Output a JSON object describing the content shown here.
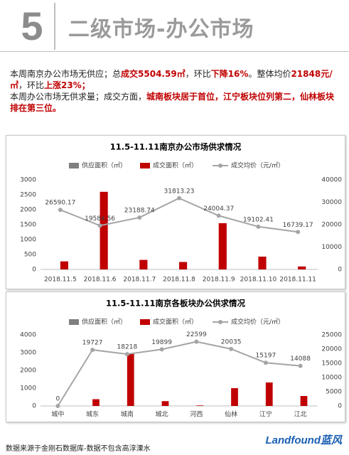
{
  "header": {
    "number": "5",
    "title": "二级市场-办公市场"
  },
  "summary": [
    [
      {
        "text": "本周南京办公市场无供应；总",
        "highlight": false
      },
      {
        "text": "成交5504.59㎡",
        "highlight": true
      },
      {
        "text": "，环比",
        "highlight": false
      },
      {
        "text": "下降16%",
        "highlight": true
      },
      {
        "text": "。整体均价",
        "highlight": false
      },
      {
        "text": "21848元/㎡",
        "highlight": true
      },
      {
        "text": "，环比",
        "highlight": false
      },
      {
        "text": "上涨23%；",
        "highlight": true
      }
    ],
    [
      {
        "text": "本周办公市场无供求量；成交方面，",
        "highlight": false
      },
      {
        "text": "城南板块居于首位，江宁板块位列第二，仙林板块排在第三位。",
        "highlight": true
      }
    ]
  ],
  "chart_data": [
    {
      "type": "bar",
      "title": "11.5-11.11南京办公市场供求情况",
      "categories": [
        "2018.11.5",
        "2018.11.6",
        "2018.11.7",
        "2018.11.8",
        "2018.11.9",
        "2018.11.10",
        "2018.11.11"
      ],
      "series": [
        {
          "name": "供应面积（㎡）",
          "color": "#7f7f7f",
          "values": [
            0,
            0,
            0,
            0,
            0,
            0,
            0
          ]
        },
        {
          "name": "成交面积（㎡）",
          "color": "#c00000",
          "values": [
            270,
            2600,
            320,
            250,
            1550,
            430,
            100
          ]
        },
        {
          "name": "成交均价（元/㎡）",
          "color": "#a5a5a5",
          "type": "line",
          "axis": "y2",
          "values": [
            26590.17,
            19584.56,
            23188.74,
            31813.23,
            24004.37,
            19102.41,
            16739.17
          ]
        }
      ],
      "ylim": [
        0,
        3000
      ],
      "yticks": [
        0,
        500,
        1000,
        1500,
        2000,
        2500,
        3000
      ],
      "y2lim": [
        0,
        40000
      ],
      "y2ticks": [
        0,
        10000,
        20000,
        30000,
        40000
      ]
    },
    {
      "type": "bar",
      "title": "11.5-11.11南京各板块办公供求情况",
      "categories": [
        "城中",
        "城东",
        "城南",
        "城北",
        "河西",
        "仙林",
        "江宁",
        "江北"
      ],
      "series": [
        {
          "name": "供应面积（㎡）",
          "color": "#7f7f7f",
          "values": [
            0,
            0,
            0,
            0,
            0,
            0,
            0,
            0
          ]
        },
        {
          "name": "成交面积（㎡）",
          "color": "#c00000",
          "values": [
            0,
            380,
            2950,
            270,
            30,
            1000,
            1320,
            560
          ]
        },
        {
          "name": "成交均价（元/㎡）",
          "color": "#a5a5a5",
          "type": "line",
          "axis": "y2",
          "values": [
            0,
            19727,
            18218,
            19899,
            22599,
            20035,
            15197,
            14088
          ]
        }
      ],
      "ylim": [
        0,
        4000
      ],
      "yticks": [
        0,
        1000,
        2000,
        3000,
        4000
      ],
      "y2lim": [
        0,
        25000
      ],
      "y2ticks": [
        0,
        5000,
        10000,
        15000,
        20000,
        25000
      ]
    }
  ],
  "footer": {
    "source": "数据来源于金刚石数据库-数据不包含高淳溧水",
    "logo": "Landfound蓝风"
  }
}
